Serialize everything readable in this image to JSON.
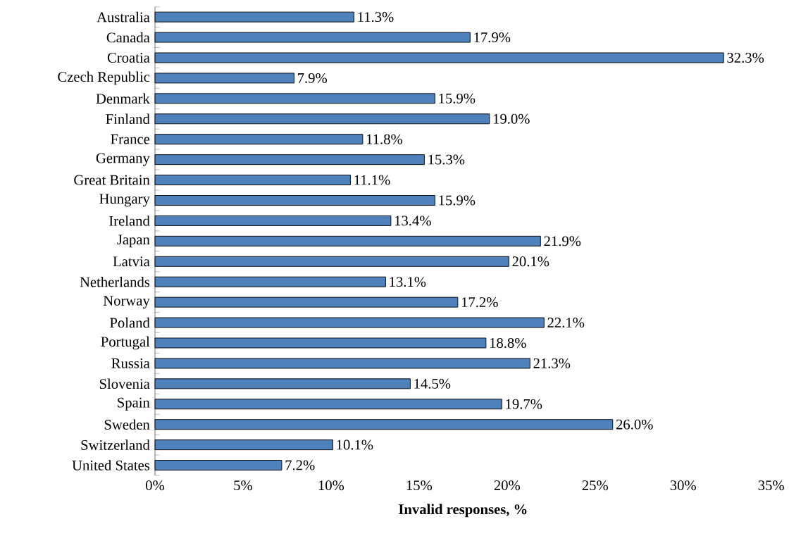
{
  "chart_data": {
    "type": "bar",
    "orientation": "horizontal",
    "xlabel": "Invalid responses, %",
    "categories": [
      "Australia",
      "Canada",
      "Croatia",
      "Czech Republic",
      "Denmark",
      "Finland",
      "France",
      "Germany",
      "Great Britain",
      "Hungary",
      "Ireland",
      "Japan",
      "Latvia",
      "Netherlands",
      "Norway",
      "Poland",
      "Portugal",
      "Russia",
      "Slovenia",
      "Spain",
      "Sweden",
      "Switzerland",
      "United States"
    ],
    "values": [
      11.3,
      17.9,
      32.3,
      7.9,
      15.9,
      19.0,
      11.8,
      15.3,
      11.1,
      15.9,
      13.4,
      21.9,
      20.1,
      13.1,
      17.2,
      22.1,
      18.8,
      21.3,
      14.5,
      19.7,
      26.0,
      10.1,
      7.2
    ],
    "value_labels": [
      "11.3%",
      "17.9%",
      "32.3%",
      "7.9%",
      "15.9%",
      "19.0%",
      "11.8%",
      "15.3%",
      "11.1%",
      "15.9%",
      "13.4%",
      "21.9%",
      "20.1%",
      "13.1%",
      "17.2%",
      "22.1%",
      "18.8%",
      "21.3%",
      "14.5%",
      "19.7%",
      "26.0%",
      "10.1%",
      "7.2%"
    ],
    "color": "#4f81bd",
    "xlim": [
      0,
      35
    ],
    "xticks": [
      {
        "value": 0,
        "label": "0%"
      },
      {
        "value": 5,
        "label": "5%"
      },
      {
        "value": 10,
        "label": "10%"
      },
      {
        "value": 15,
        "label": "15%"
      },
      {
        "value": 20,
        "label": "20%"
      },
      {
        "value": 25,
        "label": "25%"
      },
      {
        "value": 30,
        "label": "30%"
      },
      {
        "value": 35,
        "label": "35%"
      }
    ],
    "grid": false
  }
}
